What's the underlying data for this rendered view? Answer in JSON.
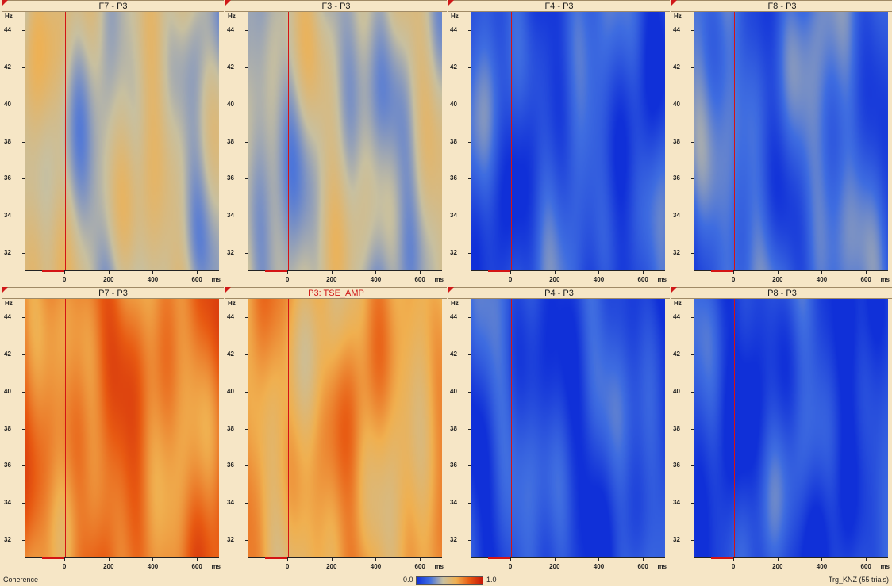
{
  "chart_data": {
    "type": "heatmap",
    "layout": "2x4",
    "panels": [
      {
        "title": "F7 - P3",
        "title_color": "#1a1a1a",
        "yunit": "Hz",
        "ytick_labels": [
          "44",
          "42",
          "40",
          "38",
          "36",
          "34",
          "32"
        ],
        "xunit": "ms",
        "xtick_labels": [
          "0",
          "200",
          "400",
          "600"
        ],
        "level": 0.42
      },
      {
        "title": "F3 - P3",
        "title_color": "#1a1a1a",
        "yunit": "Hz",
        "ytick_labels": [
          "44",
          "42",
          "40",
          "38",
          "36",
          "34",
          "32"
        ],
        "xunit": "ms",
        "xtick_labels": [
          "0",
          "200",
          "400",
          "600"
        ],
        "level": 0.38
      },
      {
        "title": "F4 - P3",
        "title_color": "#1a1a1a",
        "yunit": "Hz",
        "ytick_labels": [
          "44",
          "42",
          "40",
          "38",
          "36",
          "34",
          "32"
        ],
        "xunit": "ms",
        "xtick_labels": [
          "0",
          "200",
          "400",
          "600"
        ],
        "level": 0.12
      },
      {
        "title": "F8 - P3",
        "title_color": "#1a1a1a",
        "yunit": "Hz",
        "ytick_labels": [
          "44",
          "42",
          "40",
          "38",
          "36",
          "34",
          "32"
        ],
        "xunit": "ms",
        "xtick_labels": [
          "0",
          "200",
          "400",
          "600"
        ],
        "level": 0.18
      },
      {
        "title": "P7 - P3",
        "title_color": "#1a1a1a",
        "yunit": "Hz",
        "ytick_labels": [
          "44",
          "42",
          "40",
          "38",
          "36",
          "34",
          "32"
        ],
        "xunit": "ms",
        "xtick_labels": [
          "0",
          "200",
          "400",
          "600"
        ],
        "level": 0.72
      },
      {
        "title": "P3: TSE_AMP",
        "title_color": "#d01818",
        "yunit": "Hz",
        "ytick_labels": [
          "44",
          "42",
          "40",
          "38",
          "36",
          "34",
          "32"
        ],
        "xunit": "ms",
        "xtick_labels": [
          "0",
          "200",
          "400",
          "600"
        ],
        "level": 0.62
      },
      {
        "title": "P4 - P3",
        "title_color": "#1a1a1a",
        "yunit": "Hz",
        "ytick_labels": [
          "44",
          "42",
          "40",
          "38",
          "36",
          "34",
          "32"
        ],
        "xunit": "ms",
        "xtick_labels": [
          "0",
          "200",
          "400",
          "600"
        ],
        "level": 0.1
      },
      {
        "title": "P8 - P3",
        "title_color": "#1a1a1a",
        "yunit": "Hz",
        "ytick_labels": [
          "44",
          "42",
          "40",
          "38",
          "36",
          "34",
          "32"
        ],
        "xunit": "ms",
        "xtick_labels": [
          "0",
          "200",
          "400",
          "600"
        ],
        "level": 0.08
      }
    ],
    "ylim": [
      31,
      45
    ],
    "xlim": [
      -180,
      700
    ],
    "colorscale": {
      "min_label": "0.0",
      "max_label": "1.0",
      "colors": [
        "#1030d8",
        "#3f6de0",
        "#c8c0a0",
        "#f0b050",
        "#e85a12",
        "#c81808"
      ]
    }
  },
  "footer": {
    "measure": "Coherence",
    "trigger_info": "Trg_KNZ (55 trials)"
  },
  "colors": {
    "onset_line": "#d41414",
    "background": "#f6e6c6"
  }
}
